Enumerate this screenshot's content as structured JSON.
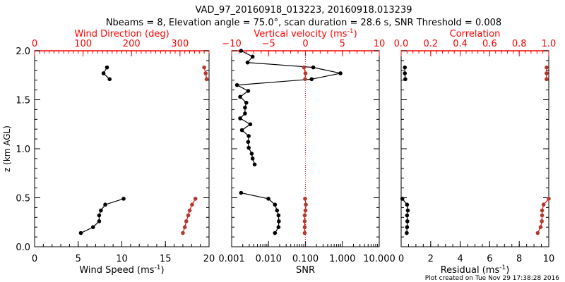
{
  "title_line1": "VAD_97_20160918_013223, 20160918.013239",
  "title_line2": "Nbeams = 8, Elevation angle = 75.0°, scan duration = 28.6 s, SNR Threshold = 0.008",
  "ylabel": "z (km AGL)",
  "footer": "Plot created on Tue Nov 29 17:38:28 2016",
  "colors": {
    "black": "#000000",
    "red": "#ff0000",
    "marker_red": "#b03a2e"
  },
  "chart_data": [
    {
      "type": "line",
      "title": "Wind profile",
      "ylim": [
        0,
        2.0
      ],
      "yticks": [
        "0.0",
        "0.5",
        "1.0",
        "1.5",
        "2.0"
      ],
      "bottom_axis": {
        "label": "Wind Speed (ms",
        "label_sup": "-1",
        "label_end": ")",
        "range": [
          0,
          20
        ],
        "ticks": [
          "0",
          "5",
          "10",
          "15",
          "20"
        ],
        "scale": "linear"
      },
      "top_axis": {
        "label": "Wind Direction (deg)",
        "range": [
          0,
          360
        ],
        "ticks": [
          "0",
          "100",
          "200",
          "300"
        ],
        "tick_values": [
          0,
          100,
          200,
          300
        ],
        "scale": "linear"
      },
      "series": [
        {
          "name": "Wind Speed",
          "axis": "bottom",
          "color": "#000000",
          "segments": [
            {
              "z": [
                0.14,
                0.2,
                0.26,
                0.32,
                0.37,
                0.43,
                0.49
              ],
              "values": [
                5.3,
                6.7,
                7.4,
                7.4,
                7.6,
                8.1,
                10.2
              ]
            },
            {
              "z": [
                1.71,
                1.77,
                1.83
              ],
              "values": [
                8.6,
                7.9,
                8.3
              ]
            }
          ]
        },
        {
          "name": "Wind Direction",
          "axis": "top",
          "color": "#ff0000",
          "segments": [
            {
              "z": [
                0.14,
                0.2,
                0.26,
                0.32,
                0.37,
                0.43,
                0.49
              ],
              "values": [
                306,
                310,
                313,
                317,
                320,
                325,
                332
              ]
            },
            {
              "z": [
                1.71,
                1.77,
                1.83
              ],
              "values": [
                355,
                353,
                350
              ]
            }
          ]
        }
      ]
    },
    {
      "type": "line",
      "title": "SNR / Vertical velocity",
      "ylim": [
        0,
        2.0
      ],
      "bottom_axis": {
        "label": "SNR",
        "range": [
          0.001,
          10
        ],
        "ticks": [
          "0.001",
          "0.010",
          "0.100",
          "1.000",
          "10.000"
        ],
        "tick_values": [
          0.001,
          0.01,
          0.1,
          1,
          10
        ],
        "scale": "log"
      },
      "top_axis": {
        "label": "Vertical velocity (ms",
        "label_sup": "-1",
        "label_end": ")",
        "range": [
          -10,
          10
        ],
        "ticks": [
          "−10",
          "−5",
          "0",
          "5",
          "10"
        ],
        "tick_values": [
          -10,
          -5,
          0,
          5,
          10
        ],
        "scale": "linear"
      },
      "reference_line": {
        "axis": "top",
        "value": 0,
        "style": "dotted"
      },
      "series": [
        {
          "name": "SNR",
          "axis": "bottom",
          "color": "#000000",
          "segments": [
            {
              "z": [
                0.14,
                0.2,
                0.26,
                0.32,
                0.37,
                0.43,
                0.49,
                0.55
              ],
              "values": [
                0.0149,
                0.0186,
                0.019,
                0.0186,
                0.017,
                0.0149,
                0.0099,
                0.0018
              ]
            },
            {
              "z": [
                0.84,
                0.9,
                0.95,
                1.01,
                1.07,
                1.13,
                1.19,
                1.25,
                1.31,
                1.36,
                1.42,
                1.47,
                1.53,
                1.59,
                1.65,
                1.71,
                1.77,
                1.83,
                1.88,
                1.94,
                2.0
              ],
              "values": [
                0.0042,
                0.0037,
                0.0035,
                0.0029,
                0.0028,
                0.0029,
                0.0019,
                0.0032,
                0.0017,
                0.0023,
                0.0023,
                0.0025,
                0.0017,
                0.0028,
                0.0014,
                0.147,
                0.89,
                0.163,
                0.0027,
                0.0037,
                0.0018
              ]
            }
          ]
        },
        {
          "name": "Vertical velocity",
          "axis": "top",
          "color": "#ff0000",
          "segments": [
            {
              "z": [
                0.14,
                0.2,
                0.26,
                0.32,
                0.37,
                0.43,
                0.49
              ],
              "values": [
                -0.1,
                -0.1,
                -0.1,
                -0.1,
                0.0,
                0.05,
                -0.05
              ]
            },
            {
              "z": [
                1.71,
                1.77,
                1.83
              ],
              "values": [
                -0.05,
                0.0,
                -0.2
              ]
            }
          ]
        }
      ]
    },
    {
      "type": "line",
      "title": "Residual / Correlation",
      "ylim": [
        0,
        2.0
      ],
      "bottom_axis": {
        "label": "Residual (ms",
        "label_sup": "-1",
        "label_end": ")",
        "range": [
          0,
          10
        ],
        "ticks": [
          "0",
          "2",
          "4",
          "6",
          "8",
          "10"
        ],
        "tick_values": [
          0,
          2,
          4,
          6,
          8,
          10
        ],
        "scale": "linear"
      },
      "top_axis": {
        "label": "Correlation",
        "range": [
          0,
          1
        ],
        "ticks": [
          "0.0",
          "0.2",
          "0.4",
          "0.6",
          "0.8",
          "1.0"
        ],
        "tick_values": [
          0,
          0.2,
          0.4,
          0.6,
          0.8,
          1.0
        ],
        "scale": "linear"
      },
      "series": [
        {
          "name": "Residual",
          "axis": "bottom",
          "color": "#000000",
          "segments": [
            {
              "z": [
                0.14,
                0.2,
                0.26,
                0.32,
                0.37,
                0.43,
                0.49
              ],
              "values": [
                0.38,
                0.4,
                0.42,
                0.4,
                0.45,
                0.4,
                0.08
              ]
            },
            {
              "z": [
                1.71,
                1.77,
                1.83
              ],
              "values": [
                0.28,
                0.25,
                0.25
              ]
            }
          ]
        },
        {
          "name": "Correlation",
          "axis": "top",
          "color": "#ff0000",
          "segments": [
            {
              "z": [
                0.14,
                0.2,
                0.26,
                0.32,
                0.37,
                0.43,
                0.49
              ],
              "values": [
                0.925,
                0.945,
                0.953,
                0.955,
                0.955,
                0.965,
                1.0
              ]
            },
            {
              "z": [
                1.71,
                1.77,
                1.83
              ],
              "values": [
                0.985,
                0.985,
                0.985
              ]
            }
          ]
        }
      ]
    }
  ]
}
